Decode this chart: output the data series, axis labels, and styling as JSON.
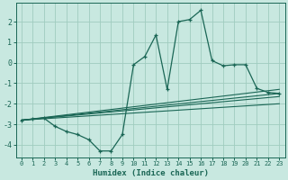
{
  "xlabel": "Humidex (Indice chaleur)",
  "bg_color": "#c8e8e0",
  "grid_color": "#a0ccbf",
  "line_color": "#1a6655",
  "xlim": [
    -0.5,
    23.5
  ],
  "ylim": [
    -4.6,
    2.9
  ],
  "xticks": [
    0,
    1,
    2,
    3,
    4,
    5,
    6,
    7,
    8,
    9,
    10,
    11,
    12,
    13,
    14,
    15,
    16,
    17,
    18,
    19,
    20,
    21,
    22,
    23
  ],
  "yticks": [
    -4,
    -3,
    -2,
    -1,
    0,
    1,
    2
  ],
  "main_line_x": [
    0,
    1,
    2,
    3,
    4,
    5,
    6,
    7,
    8,
    9,
    10,
    11,
    12,
    13,
    14,
    15,
    16,
    17,
    18,
    19,
    20,
    21,
    22,
    23
  ],
  "main_line_y": [
    -2.8,
    -2.75,
    -2.7,
    -3.1,
    -3.35,
    -3.5,
    -3.75,
    -4.3,
    -4.3,
    -3.5,
    -0.1,
    0.3,
    1.35,
    -1.3,
    2.0,
    2.1,
    2.55,
    0.1,
    -0.15,
    -0.1,
    -0.1,
    -1.25,
    -1.45,
    -1.5
  ],
  "reg_lines": [
    {
      "x": [
        0,
        23
      ],
      "y": [
        -2.8,
        -1.3
      ]
    },
    {
      "x": [
        0,
        23
      ],
      "y": [
        -2.8,
        -1.5
      ]
    },
    {
      "x": [
        0,
        23
      ],
      "y": [
        -2.8,
        -1.65
      ]
    },
    {
      "x": [
        0,
        23
      ],
      "y": [
        -2.8,
        -2.0
      ]
    }
  ]
}
